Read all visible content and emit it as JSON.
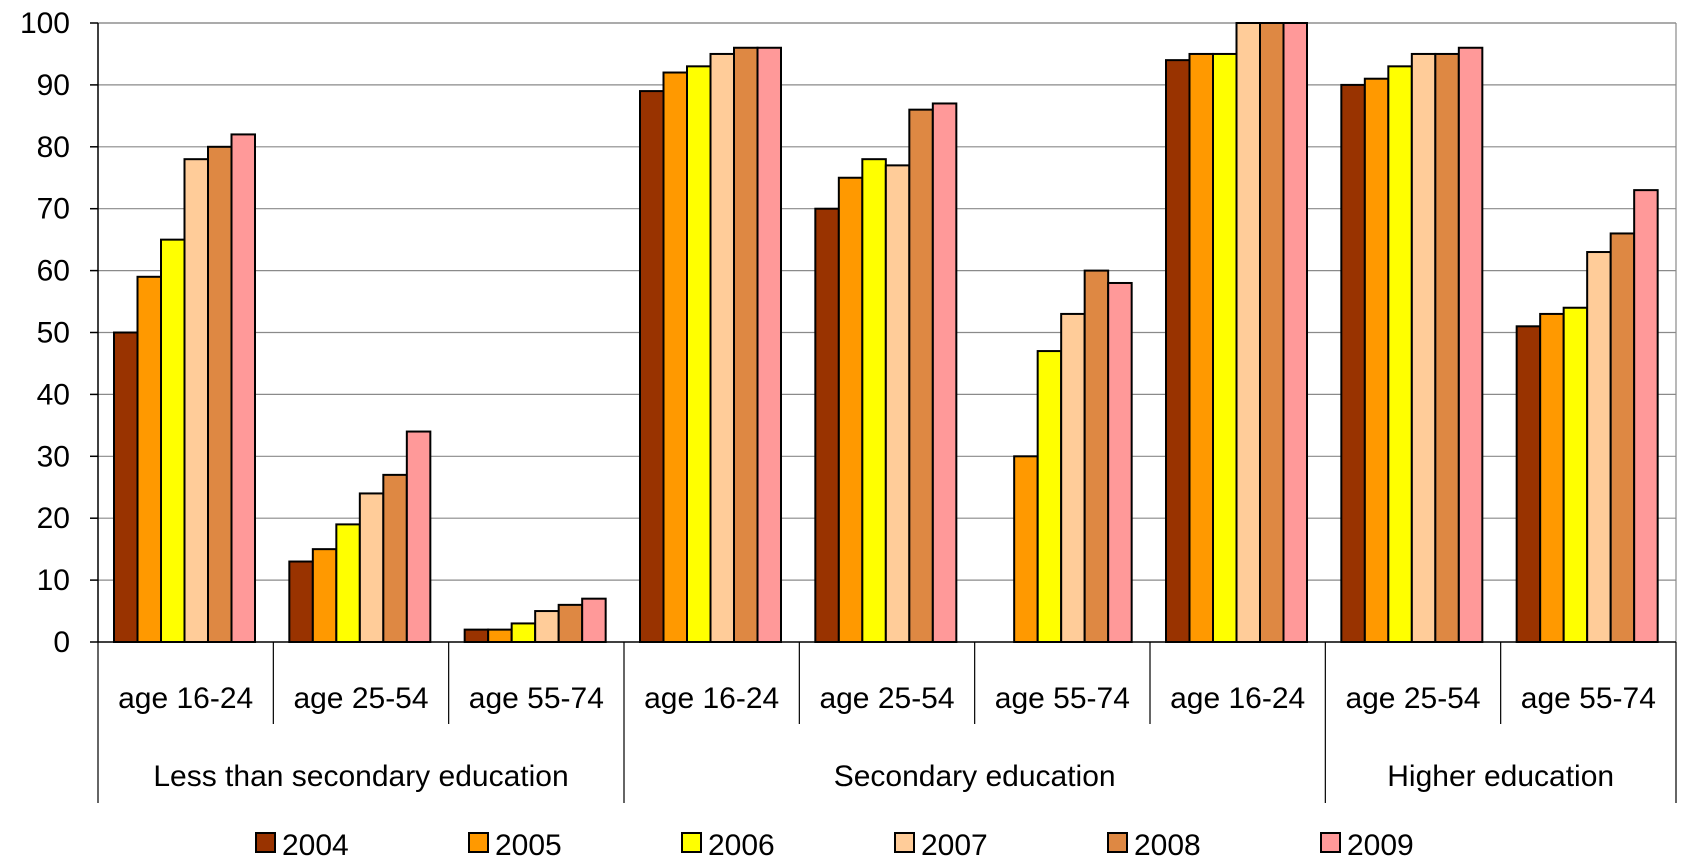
{
  "chart_data": {
    "type": "bar",
    "title": "",
    "xlabel": "",
    "ylabel": "",
    "ylim": [
      0,
      100
    ],
    "yticks": [
      0,
      10,
      20,
      30,
      40,
      50,
      60,
      70,
      80,
      90,
      100
    ],
    "grid": "horizontal",
    "legend_position": "bottom",
    "categories": [
      "age 16-24",
      "age 25-54",
      "age 55-74",
      "age 16-24",
      "age 25-54",
      "age 55-74",
      "age 16-24",
      "age 25-54",
      "age 55-74"
    ],
    "groups": [
      {
        "label": "Less than secondary education",
        "categories": [
          0,
          1,
          2
        ]
      },
      {
        "label": "Secondary education",
        "categories": [
          3,
          4,
          5,
          6
        ]
      },
      {
        "label": "Higher education",
        "categories": [
          7,
          8
        ]
      }
    ],
    "series": [
      {
        "name": "2004",
        "color": "#993300",
        "values": [
          50,
          13,
          2,
          89,
          70,
          null,
          94,
          90,
          51
        ]
      },
      {
        "name": "2005",
        "color": "#ff9900",
        "values": [
          59,
          15,
          2,
          92,
          75,
          30,
          95,
          91,
          53
        ]
      },
      {
        "name": "2006",
        "color": "#ffff00",
        "values": [
          65,
          19,
          3,
          93,
          78,
          47,
          95,
          93,
          54
        ]
      },
      {
        "name": "2007",
        "color": "#ffcc99",
        "values": [
          78,
          24,
          5,
          95,
          77,
          53,
          100,
          95,
          63
        ]
      },
      {
        "name": "2008",
        "color": "#de8843",
        "values": [
          80,
          27,
          6,
          96,
          86,
          60,
          100,
          95,
          66
        ]
      },
      {
        "name": "2009",
        "color": "#ff9999",
        "values": [
          82,
          34,
          7,
          96,
          87,
          58,
          100,
          96,
          73
        ]
      }
    ]
  }
}
